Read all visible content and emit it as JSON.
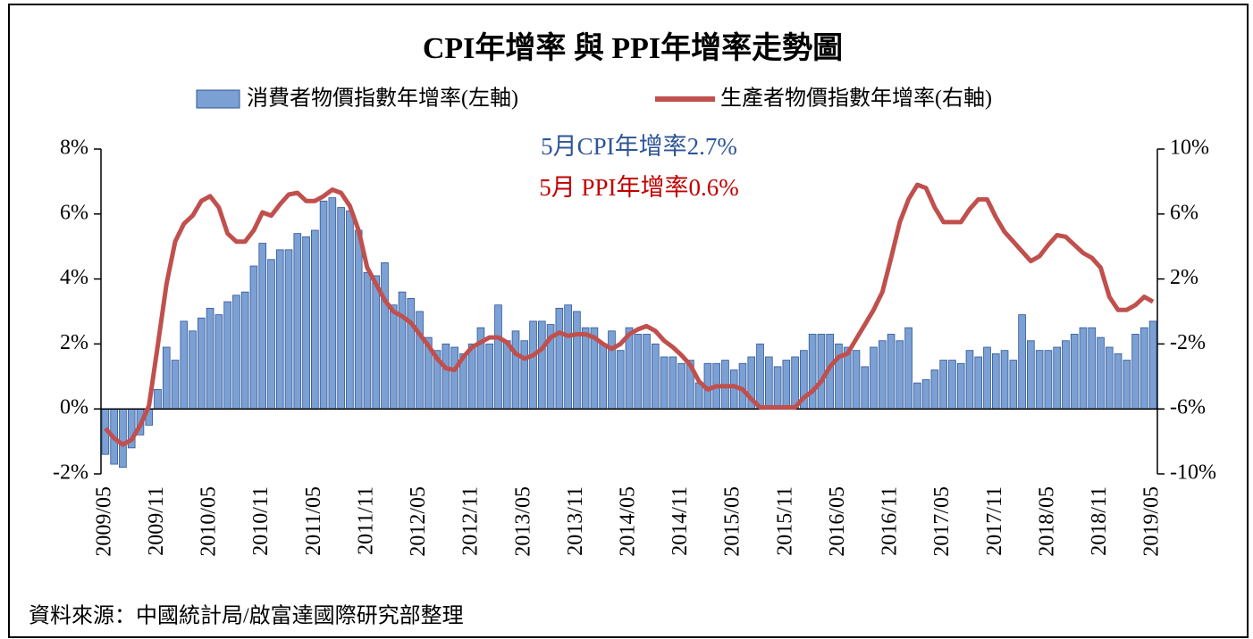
{
  "chart_data": {
    "type": "bar-line",
    "title": "CPI年增率 與 PPI年增率走勢圖",
    "annotations": [
      {
        "text": "5月CPI年增率2.7%",
        "color": "#2f5597"
      },
      {
        "text": "5月 PPI年增率0.6%",
        "color": "#c00000"
      }
    ],
    "source": "資料來源：中國統計局/啟富達國際研究部整理",
    "legend": "top",
    "categories": [
      "2009/05",
      null,
      null,
      null,
      null,
      null,
      "2009/11",
      null,
      null,
      null,
      null,
      null,
      "2010/05",
      null,
      null,
      null,
      null,
      null,
      "2010/11",
      null,
      null,
      null,
      null,
      null,
      "2011/05",
      null,
      null,
      null,
      null,
      null,
      "2011/11",
      null,
      null,
      null,
      null,
      null,
      "2012/05",
      null,
      null,
      null,
      null,
      null,
      "2012/11",
      null,
      null,
      null,
      null,
      null,
      "2013/05",
      null,
      null,
      null,
      null,
      null,
      "2013/11",
      null,
      null,
      null,
      null,
      null,
      "2014/05",
      null,
      null,
      null,
      null,
      null,
      "2014/11",
      null,
      null,
      null,
      null,
      null,
      "2015/05",
      null,
      null,
      null,
      null,
      null,
      "2015/11",
      null,
      null,
      null,
      null,
      null,
      "2016/05",
      null,
      null,
      null,
      null,
      null,
      "2016/11",
      null,
      null,
      null,
      null,
      null,
      "2017/05",
      null,
      null,
      null,
      null,
      null,
      "2017/11",
      null,
      null,
      null,
      null,
      null,
      "2018/05",
      null,
      null,
      null,
      null,
      null,
      "2018/11",
      null,
      null,
      null,
      null,
      null,
      "2019/05"
    ],
    "series": [
      {
        "name": "消費者物價指數年增率(左軸)",
        "type": "bar",
        "axis": "y",
        "color": "#7ba0d4",
        "values": [
          -1.4,
          -1.7,
          -1.8,
          -1.2,
          -0.8,
          -0.5,
          0.6,
          1.9,
          1.5,
          2.7,
          2.4,
          2.8,
          3.1,
          2.9,
          3.3,
          3.5,
          3.6,
          4.4,
          5.1,
          4.6,
          4.9,
          4.9,
          5.4,
          5.3,
          5.5,
          6.4,
          6.5,
          6.2,
          6.1,
          5.5,
          4.2,
          4.1,
          4.5,
          3.2,
          3.6,
          3.4,
          3.0,
          2.2,
          1.8,
          2.0,
          1.9,
          1.7,
          2.0,
          2.5,
          2.0,
          3.2,
          2.1,
          2.4,
          2.1,
          2.7,
          2.7,
          2.6,
          3.1,
          3.2,
          3.0,
          2.5,
          2.5,
          2.0,
          2.4,
          1.8,
          2.5,
          2.3,
          2.3,
          2.0,
          1.6,
          1.6,
          1.4,
          1.5,
          0.8,
          1.4,
          1.4,
          1.5,
          1.2,
          1.4,
          1.6,
          2.0,
          1.6,
          1.3,
          1.5,
          1.6,
          1.8,
          2.3,
          2.3,
          2.3,
          2.0,
          1.9,
          1.8,
          1.3,
          1.9,
          2.1,
          2.3,
          2.1,
          2.5,
          0.8,
          0.9,
          1.2,
          1.5,
          1.5,
          1.4,
          1.8,
          1.6,
          1.9,
          1.7,
          1.8,
          1.5,
          2.9,
          2.1,
          1.8,
          1.8,
          1.9,
          2.1,
          2.3,
          2.5,
          2.5,
          2.2,
          1.9,
          1.7,
          1.5,
          2.3,
          2.5,
          2.7
        ]
      },
      {
        "name": "生產者物價指數年增率(右軸)",
        "type": "line",
        "axis": "y2",
        "color": "#c0504d",
        "values": [
          -7.2,
          -7.8,
          -8.2,
          -7.9,
          -7.0,
          -5.8,
          -2.1,
          1.7,
          4.3,
          5.4,
          5.9,
          6.8,
          7.1,
          6.4,
          4.8,
          4.3,
          4.3,
          5.0,
          6.1,
          5.9,
          6.6,
          7.2,
          7.3,
          6.8,
          6.8,
          7.1,
          7.5,
          7.3,
          6.5,
          5.0,
          2.7,
          1.7,
          0.7,
          0.0,
          -0.3,
          -0.7,
          -1.4,
          -2.1,
          -2.9,
          -3.5,
          -3.6,
          -2.8,
          -2.2,
          -1.9,
          -1.6,
          -1.6,
          -1.9,
          -2.6,
          -2.9,
          -2.7,
          -2.3,
          -1.6,
          -1.3,
          -1.5,
          -1.4,
          -1.4,
          -1.6,
          -2.0,
          -2.3,
          -2.0,
          -1.4,
          -1.1,
          -0.9,
          -1.2,
          -1.8,
          -2.2,
          -2.7,
          -3.3,
          -4.3,
          -4.8,
          -4.6,
          -4.6,
          -4.6,
          -4.8,
          -5.4,
          -5.9,
          -5.9,
          -5.9,
          -5.9,
          -5.9,
          -5.3,
          -4.9,
          -4.3,
          -3.4,
          -2.8,
          -2.6,
          -1.7,
          -0.8,
          0.1,
          1.2,
          3.3,
          5.5,
          6.9,
          7.8,
          7.6,
          6.4,
          5.5,
          5.5,
          5.5,
          6.3,
          6.9,
          6.9,
          5.8,
          4.9,
          4.3,
          3.7,
          3.1,
          3.4,
          4.1,
          4.7,
          4.6,
          4.1,
          3.6,
          3.3,
          2.7,
          0.9,
          0.1,
          0.1,
          0.4,
          0.9,
          0.6
        ]
      }
    ],
    "ylim": [
      -2,
      8
    ],
    "yticks": [
      {
        "value": -2,
        "label": "-2%"
      },
      {
        "value": 0,
        "label": "0%"
      },
      {
        "value": 2,
        "label": "2%"
      },
      {
        "value": 4,
        "label": "4%"
      },
      {
        "value": 6,
        "label": "6%"
      },
      {
        "value": 8,
        "label": "8%"
      }
    ],
    "y2lim": [
      -10,
      10
    ],
    "y2ticks": [
      {
        "value": -10,
        "label": "-10%"
      },
      {
        "value": -6,
        "label": "-6%"
      },
      {
        "value": -2,
        "label": "-2%"
      },
      {
        "value": 2,
        "label": "2%"
      },
      {
        "value": 6,
        "label": "6%"
      },
      {
        "value": 10,
        "label": "10%"
      }
    ]
  }
}
